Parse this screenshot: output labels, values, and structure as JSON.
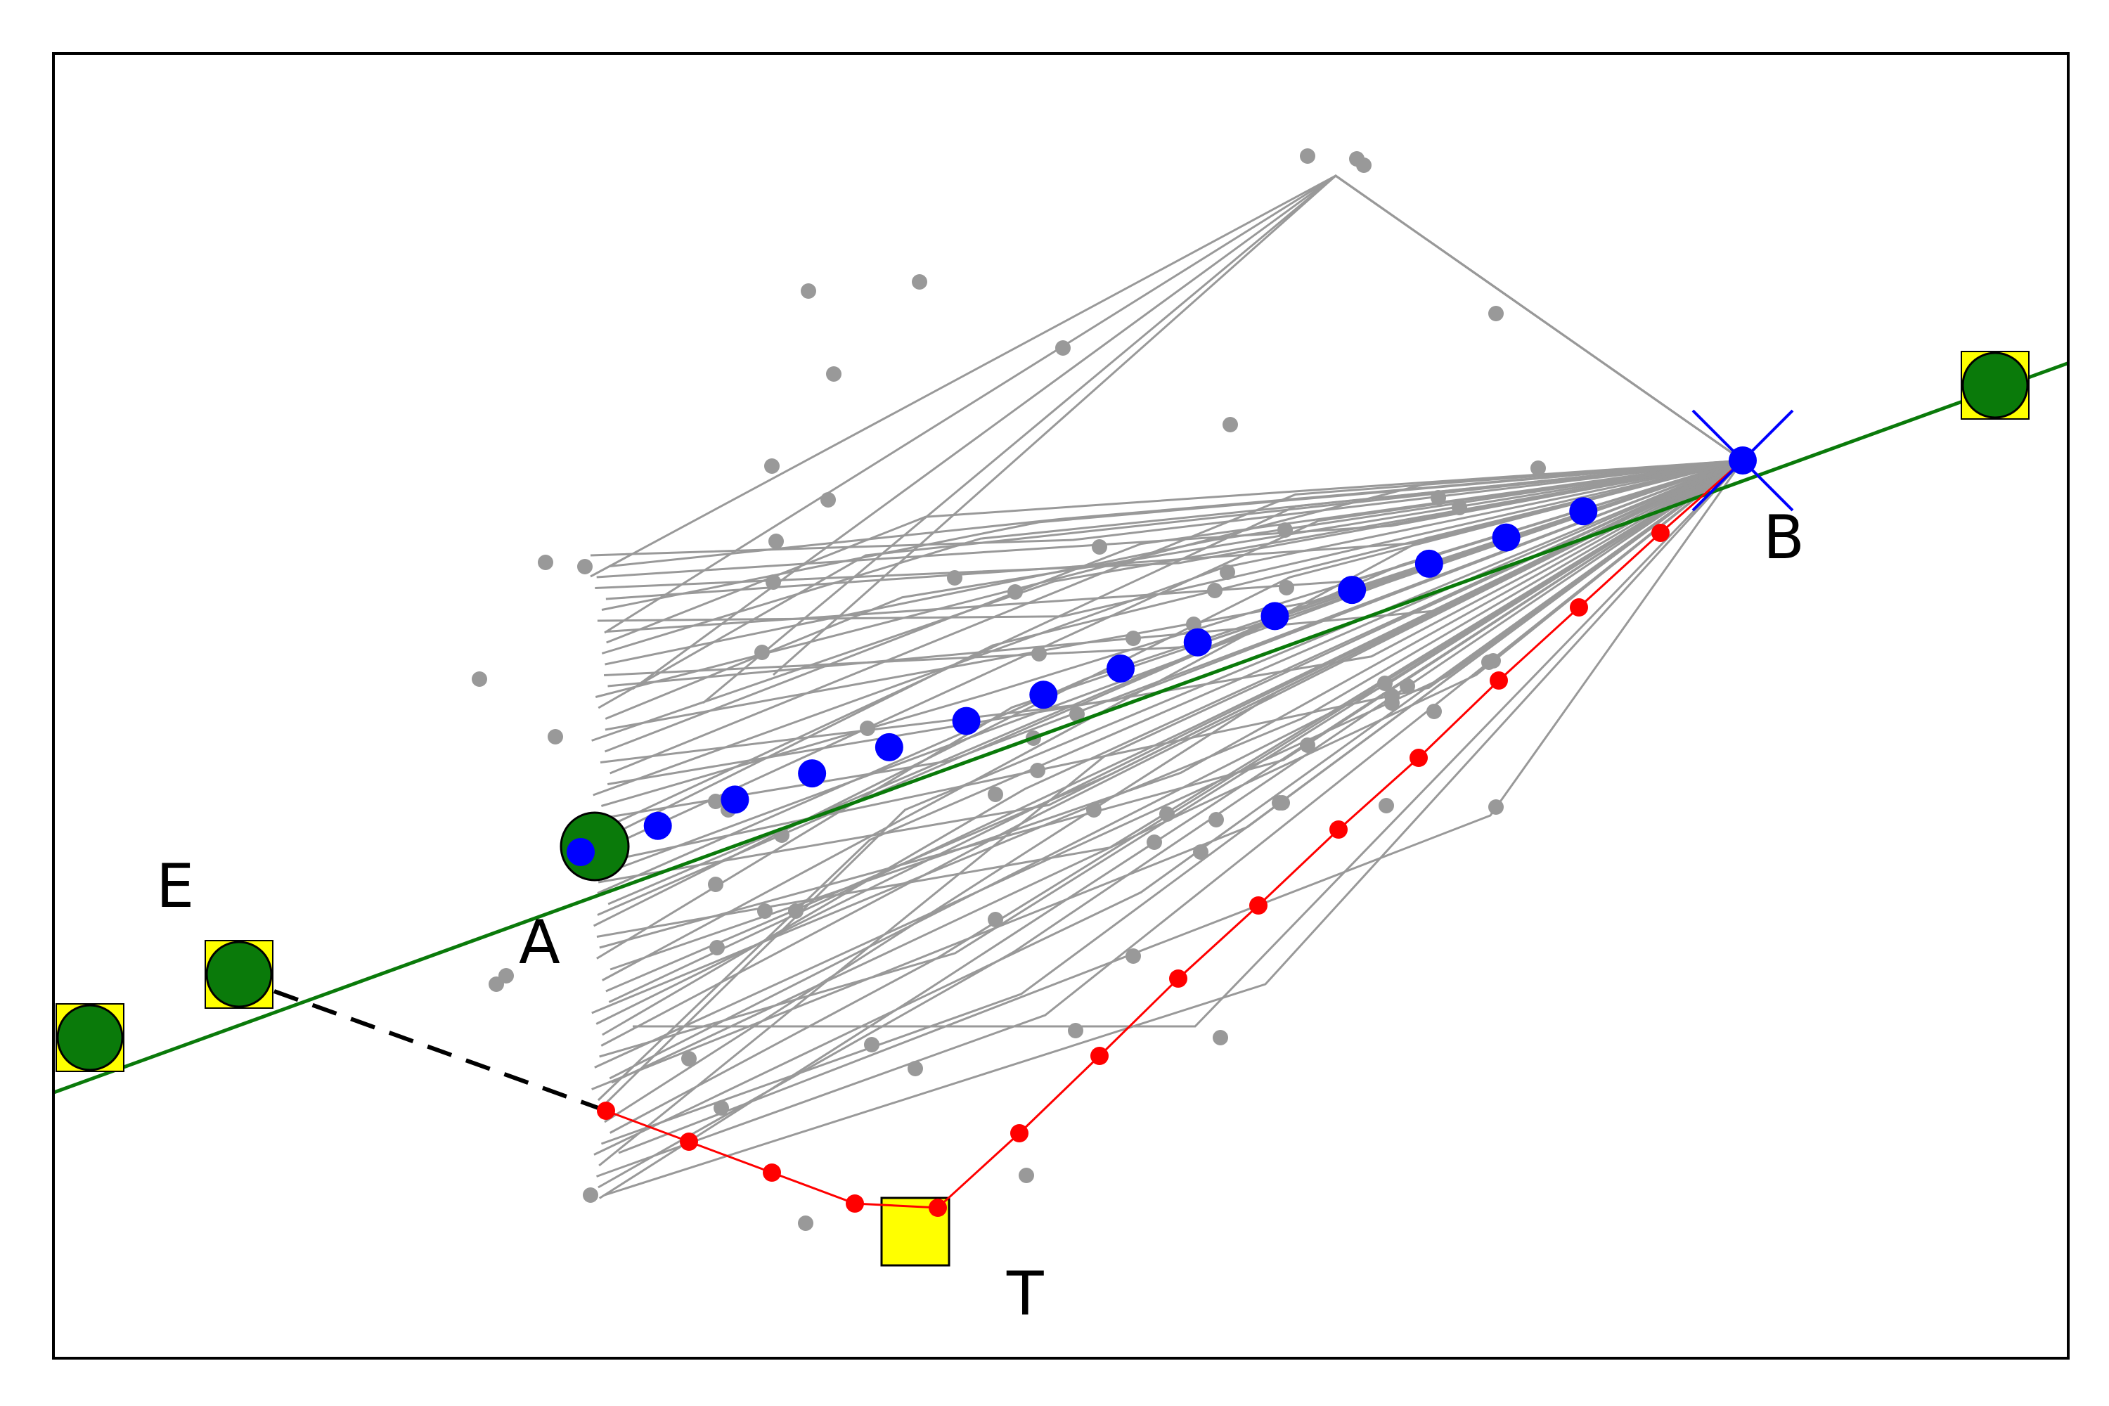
{
  "labels": {
    "A": "A",
    "B": "B",
    "E": "E",
    "T": "T"
  },
  "colors": {
    "frame": "#000000",
    "reference_line": "#0a7a0a",
    "node_fill": "#0a7a0a",
    "node_box": "#ffff00",
    "target_box": "#ffff00",
    "samples": "#999999",
    "optimal_path": "#0000ff",
    "candidate_path": "#ff0000",
    "dashed_link": "#000000"
  },
  "icons": {
    "B_marker": "cross-marker-icon",
    "nodes": "circle-in-square-icon",
    "T_marker": "square-icon"
  }
}
